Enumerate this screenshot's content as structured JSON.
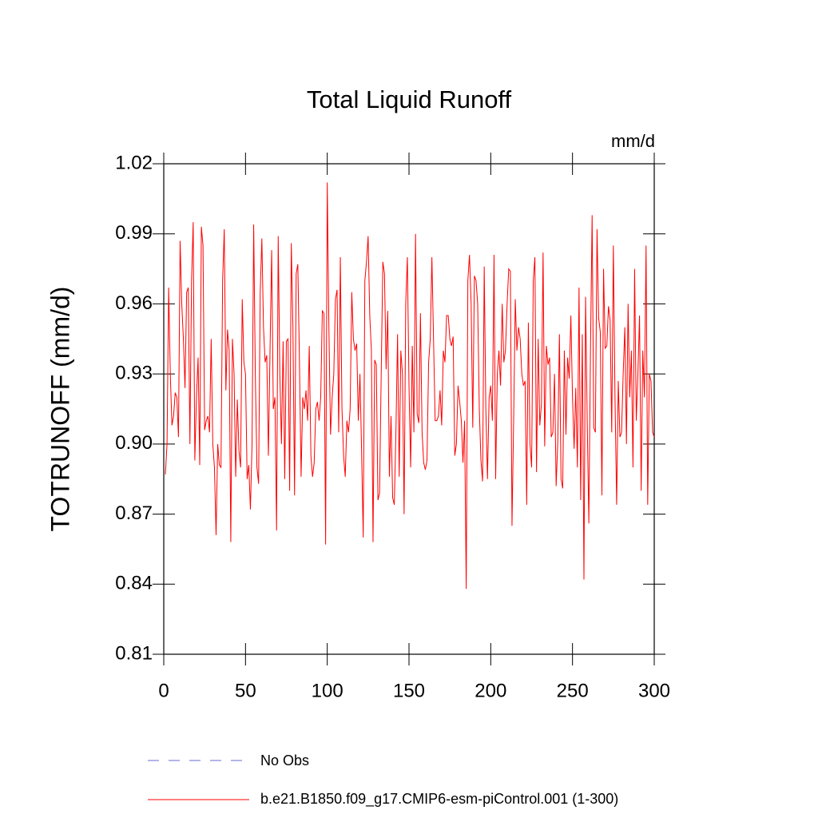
{
  "chart_data": {
    "type": "line",
    "title": "Total Liquid Runoff",
    "units": "mm/d",
    "ylabel": "TOTRUNOFF  (mm/d)",
    "x": [
      1,
      2,
      3,
      4,
      5,
      6,
      7,
      8,
      9,
      10,
      11,
      12,
      13,
      14,
      15,
      16,
      17,
      18,
      19,
      20,
      21,
      22,
      23,
      24,
      25,
      26,
      27,
      28,
      29,
      30,
      31,
      32,
      33,
      34,
      35,
      36,
      37,
      38,
      39,
      40,
      41,
      42,
      43,
      44,
      45,
      46,
      47,
      48,
      49,
      50,
      51,
      52,
      53,
      54,
      55,
      56,
      57,
      58,
      59,
      60,
      61,
      62,
      63,
      64,
      65,
      66,
      67,
      68,
      69,
      70,
      71,
      72,
      73,
      74,
      75,
      76,
      77,
      78,
      79,
      80,
      81,
      82,
      83,
      84,
      85,
      86,
      87,
      88,
      89,
      90,
      91,
      92,
      93,
      94,
      95,
      96,
      97,
      98,
      99,
      100,
      101,
      102,
      103,
      104,
      105,
      106,
      107,
      108,
      109,
      110,
      111,
      112,
      113,
      114,
      115,
      116,
      117,
      118,
      119,
      120,
      121,
      122,
      123,
      124,
      125,
      126,
      127,
      128,
      129,
      130,
      131,
      132,
      133,
      134,
      135,
      136,
      137,
      138,
      139,
      140,
      141,
      142,
      143,
      144,
      145,
      146,
      147,
      148,
      149,
      150,
      151,
      152,
      153,
      154,
      155,
      156,
      157,
      158,
      159,
      160,
      161,
      162,
      163,
      164,
      165,
      166,
      167,
      168,
      169,
      170,
      171,
      172,
      173,
      174,
      175,
      176,
      177,
      178,
      179,
      180,
      181,
      182,
      183,
      184,
      185,
      186,
      187,
      188,
      189,
      190,
      191,
      192,
      193,
      194,
      195,
      196,
      197,
      198,
      199,
      200,
      201,
      202,
      203,
      204,
      205,
      206,
      207,
      208,
      209,
      210,
      211,
      212,
      213,
      214,
      215,
      216,
      217,
      218,
      219,
      220,
      221,
      222,
      223,
      224,
      225,
      226,
      227,
      228,
      229,
      230,
      231,
      232,
      233,
      234,
      235,
      236,
      237,
      238,
      239,
      240,
      241,
      242,
      243,
      244,
      245,
      246,
      247,
      248,
      249,
      250,
      251,
      252,
      253,
      254,
      255,
      256,
      257,
      258,
      259,
      260,
      261,
      262,
      263,
      264,
      265,
      266,
      267,
      268,
      269,
      270,
      271,
      272,
      273,
      274,
      275,
      276,
      277,
      278,
      279,
      280,
      281,
      282,
      283,
      284,
      285,
      286,
      287,
      288,
      289,
      290,
      291,
      292,
      293,
      294,
      295,
      296,
      297,
      298,
      299,
      300
    ],
    "series": [
      {
        "name": "b.e21.B1850.f09_g17.CMIP6-esm-piControl.001 (1-300)",
        "color": "#ff0000",
        "values": [
          0.887,
          0.9,
          0.967,
          0.93,
          0.908,
          0.912,
          0.922,
          0.92,
          0.903,
          0.987,
          0.96,
          0.945,
          0.924,
          0.965,
          0.967,
          0.9,
          0.97,
          0.995,
          0.893,
          0.92,
          0.937,
          0.891,
          0.993,
          0.985,
          0.906,
          0.91,
          0.912,
          0.905,
          0.945,
          0.9,
          0.89,
          0.861,
          0.9,
          0.891,
          0.89,
          0.97,
          0.992,
          0.923,
          0.949,
          0.94,
          0.858,
          0.945,
          0.93,
          0.886,
          0.919,
          0.897,
          0.89,
          0.962,
          0.935,
          0.93,
          0.885,
          0.891,
          0.872,
          0.9,
          0.994,
          0.93,
          0.89,
          0.883,
          0.965,
          0.988,
          0.95,
          0.935,
          0.938,
          0.895,
          0.94,
          0.983,
          0.915,
          0.92,
          0.863,
          0.989,
          0.93,
          0.9,
          0.944,
          0.885,
          0.944,
          0.945,
          0.88,
          0.986,
          0.95,
          0.878,
          0.973,
          0.977,
          0.935,
          0.886,
          0.92,
          0.915,
          0.923,
          0.91,
          0.942,
          0.895,
          0.886,
          0.892,
          0.915,
          0.918,
          0.91,
          0.92,
          0.957,
          0.956,
          0.857,
          1.012,
          0.95,
          0.904,
          0.92,
          0.93,
          0.962,
          0.966,
          0.905,
          0.98,
          0.915,
          0.895,
          0.886,
          0.91,
          0.905,
          0.915,
          0.965,
          0.945,
          0.94,
          0.943,
          0.91,
          0.93,
          0.897,
          0.86,
          0.97,
          0.978,
          0.989,
          0.955,
          0.94,
          0.858,
          0.936,
          0.934,
          0.876,
          0.879,
          0.93,
          0.978,
          0.973,
          0.932,
          0.957,
          0.886,
          0.912,
          0.877,
          0.874,
          0.905,
          0.947,
          0.886,
          0.94,
          0.93,
          0.87,
          0.96,
          0.98,
          0.925,
          0.89,
          0.942,
          0.905,
          0.99,
          0.913,
          0.909,
          0.956,
          0.905,
          0.892,
          0.889,
          0.893,
          0.935,
          0.945,
          0.98,
          0.945,
          0.91,
          0.91,
          0.912,
          0.923,
          0.908,
          0.94,
          0.935,
          0.955,
          0.955,
          0.945,
          0.942,
          0.946,
          0.895,
          0.9,
          0.925,
          0.918,
          0.91,
          0.892,
          0.91,
          0.838,
          0.97,
          0.981,
          0.96,
          0.907,
          0.972,
          0.97,
          0.96,
          0.915,
          0.893,
          0.884,
          0.976,
          0.915,
          0.885,
          0.92,
          0.925,
          0.91,
          0.981,
          0.885,
          0.93,
          0.94,
          0.925,
          0.96,
          0.935,
          0.94,
          0.96,
          0.975,
          0.974,
          0.865,
          0.91,
          0.962,
          0.94,
          0.95,
          0.945,
          0.93,
          0.925,
          0.927,
          0.874,
          0.952,
          0.9,
          0.89,
          0.97,
          0.98,
          0.888,
          0.945,
          0.908,
          0.917,
          0.982,
          0.899,
          0.942,
          0.934,
          0.937,
          0.903,
          0.905,
          0.93,
          0.882,
          0.901,
          0.947,
          0.885,
          0.881,
          0.94,
          0.904,
          0.937,
          0.928,
          0.955,
          0.92,
          0.898,
          0.924,
          0.89,
          0.967,
          0.876,
          0.947,
          0.842,
          0.963,
          0.91,
          0.866,
          0.94,
          0.998,
          0.907,
          0.905,
          0.992,
          0.954,
          0.948,
          0.878,
          0.975,
          0.941,
          0.942,
          0.959,
          0.953,
          0.905,
          0.985,
          0.92,
          0.874,
          0.927,
          0.903,
          0.905,
          0.93,
          0.95,
          0.9,
          0.96,
          0.92,
          0.94,
          0.89,
          0.975,
          0.91,
          0.93,
          0.955,
          0.88,
          0.94,
          0.92,
          0.985,
          0.874,
          0.93,
          0.927,
          0.905,
          0.903
        ]
      }
    ],
    "obs": {
      "name": "No Obs",
      "color": "#6a6ad0",
      "dash": true
    },
    "xlim": [
      0,
      300
    ],
    "xticks": [
      0,
      50,
      100,
      150,
      200,
      250,
      300
    ],
    "ylim": [
      0.81,
      1.02
    ],
    "yticks": [
      0.81,
      0.84,
      0.87,
      {
        "value": 0.9,
        "label": "0.90"
      },
      0.93,
      0.96,
      0.99,
      1.02
    ]
  }
}
